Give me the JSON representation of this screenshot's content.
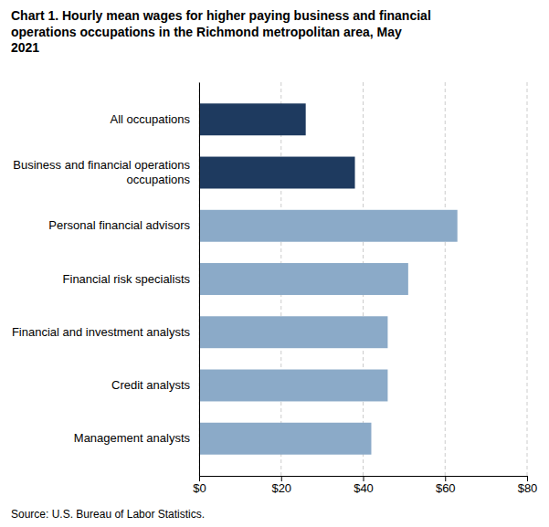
{
  "chart_data": {
    "type": "bar",
    "orientation": "horizontal",
    "title": "Chart 1. Hourly mean wages for higher paying business and financial\noperations occupations in the Richmond metropolitan area, May\n2021",
    "categories": [
      "Management analysts",
      "Credit analysts",
      "Financial and investment analysts",
      "Financial risk specialists",
      "Personal financial advisors",
      "Business and financial operations\noccupations",
      "All occupations"
    ],
    "values": [
      42,
      46,
      46,
      51,
      63,
      38,
      26
    ],
    "colors": [
      "#8baac8",
      "#8baac8",
      "#8baac8",
      "#8baac8",
      "#8baac8",
      "#1e3a5f",
      "#1e3a5f"
    ],
    "xlim": [
      0,
      80
    ],
    "xticks": [
      {
        "value": 0,
        "label": "$0"
      },
      {
        "value": 20,
        "label": "$20"
      },
      {
        "value": 40,
        "label": "$40"
      },
      {
        "value": 60,
        "label": "$60"
      },
      {
        "value": 80,
        "label": "$80"
      }
    ],
    "grid": true,
    "annotations": [
      "Source: U.S. Bureau of Labor Statistics."
    ]
  }
}
